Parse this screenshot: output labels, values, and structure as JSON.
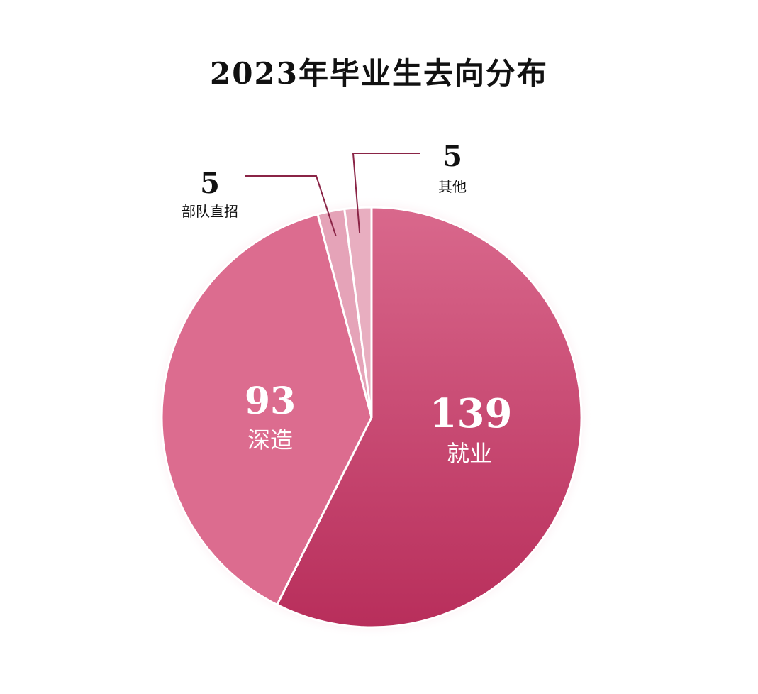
{
  "chart_data": {
    "type": "pie",
    "title": "2023年毕业生去向分布",
    "slices": [
      {
        "label": "就业",
        "value": 139,
        "color": "#c43a68"
      },
      {
        "label": "深造",
        "value": 93,
        "color": "#dc6c8f"
      },
      {
        "label": "部队直招",
        "value": 5,
        "color": "#e5a3b8"
      },
      {
        "label": "其他",
        "value": 5,
        "color": "#e8aec0"
      }
    ],
    "label_style": {
      "inside_color": "#ffffff",
      "outside_color": "#111111",
      "leader_line_color": "#8a2446"
    }
  }
}
